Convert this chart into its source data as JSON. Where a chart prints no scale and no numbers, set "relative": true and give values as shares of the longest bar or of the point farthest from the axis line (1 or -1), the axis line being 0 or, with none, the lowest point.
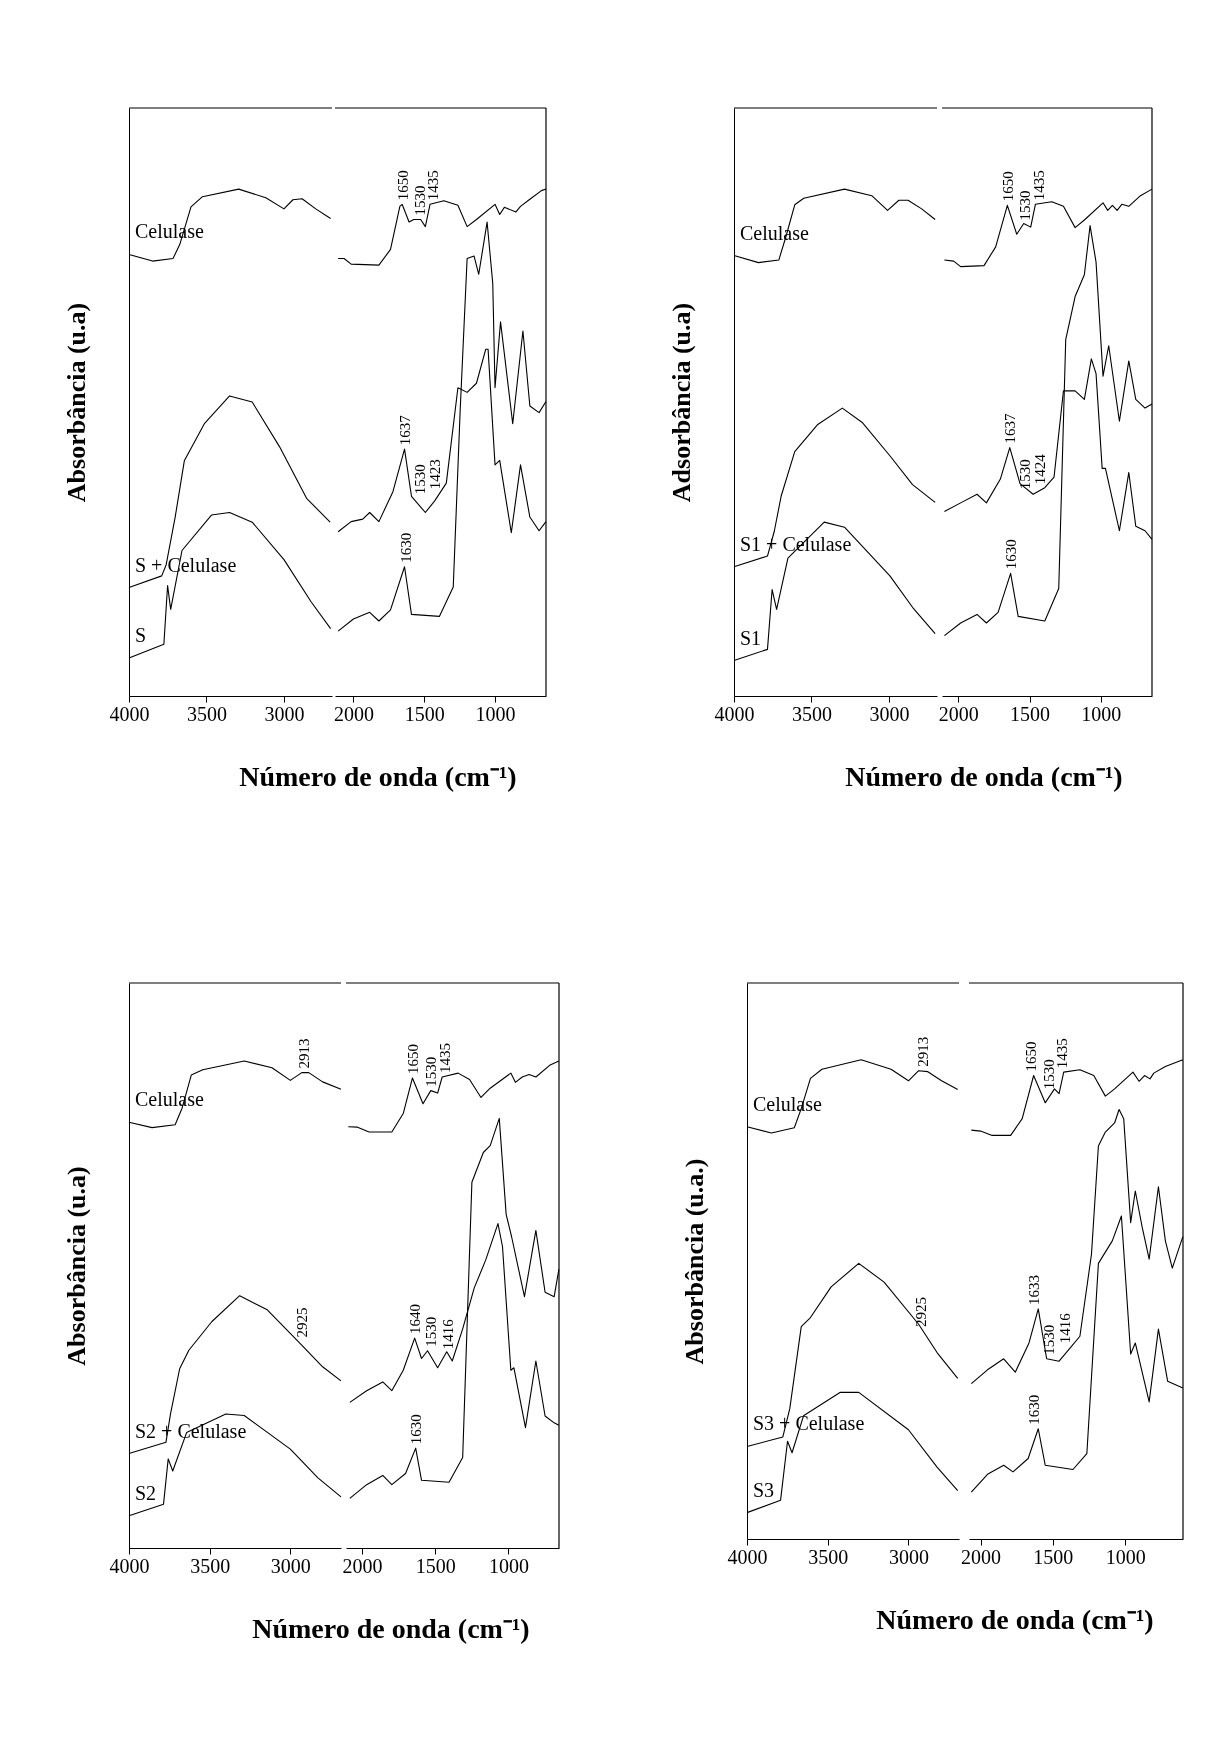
{
  "chart_data": [
    {
      "type": "line",
      "relative": true,
      "tick_labels": "x",
      "ylabel": "Absorbância (u.a)",
      "xlabel": "Número de onda (cm⁻¹)",
      "xlim": [
        4000,
        2690
      ],
      "xticks": [
        4000,
        3500,
        3000
      ],
      "series": [
        {
          "name": "Celulase",
          "color": "#000000",
          "x": [
            4000,
            3848,
            3716,
            3672,
            3600,
            3526,
            3292,
            3117,
            3000,
            2942,
            2883,
            2795,
            2699
          ],
          "values": [
            0.871,
            0.858,
            0.863,
            0.891,
            0.965,
            0.985,
            1.0,
            0.983,
            0.961,
            0.979,
            0.981,
            0.961,
            0.942
          ]
        },
        {
          "name": "S + Celulase",
          "color": "#000000",
          "x": [
            4000,
            3789,
            3760,
            3702,
            3643,
            3512,
            3351,
            3205,
            3029,
            2854,
            2702
          ],
          "values": [
            0.214,
            0.237,
            0.259,
            0.353,
            0.464,
            0.538,
            0.592,
            0.58,
            0.492,
            0.39,
            0.343
          ]
        },
        {
          "name": "S",
          "color": "#000000",
          "x": [
            4000,
            3775,
            3751,
            3731,
            3658,
            3468,
            3351,
            3205,
            3000,
            2825,
            2699
          ],
          "values": [
            0.075,
            0.102,
            0.218,
            0.171,
            0.287,
            0.357,
            0.362,
            0.343,
            0.269,
            0.186,
            0.133
          ]
        }
      ]
    },
    {
      "type": "line",
      "relative": true,
      "tick_labels": "x",
      "xlim": [
        2130,
        640
      ],
      "xticks": [
        2000,
        1500,
        1000
      ],
      "series": [
        {
          "color": "#000000",
          "x": [
            2108,
            2066,
            2016,
            1820,
            1738,
            1672,
            1656,
            1607,
            1574,
            1525,
            1492,
            1459,
            1361,
            1262,
            1197,
            1131,
            1000,
            967,
            934,
            852,
            820,
            754,
            672,
            640
          ],
          "values": [
            0.863,
            0.863,
            0.852,
            0.85,
            0.881,
            0.966,
            0.97,
            0.935,
            0.94,
            0.94,
            0.926,
            0.97,
            0.977,
            0.968,
            0.926,
            0.94,
            0.97,
            0.95,
            0.964,
            0.955,
            0.966,
            0.98,
            0.997,
            1.0
          ]
        },
        {
          "color": "#000000",
          "x": [
            2108,
            2016,
            1934,
            1885,
            1820,
            1721,
            1639,
            1590,
            1492,
            1426,
            1344,
            1262,
            1197,
            1131,
            1066,
            1049,
            1000,
            967,
            885,
            820,
            754,
            689,
            640
          ],
          "values": [
            0.324,
            0.344,
            0.349,
            0.362,
            0.344,
            0.403,
            0.487,
            0.394,
            0.362,
            0.385,
            0.42,
            0.608,
            0.599,
            0.617,
            0.684,
            0.684,
            0.456,
            0.465,
            0.322,
            0.456,
            0.353,
            0.326,
            0.344
          ]
        },
        {
          "color": "#000000",
          "x": [
            2108,
            2000,
            1885,
            1820,
            1738,
            1639,
            1590,
            1393,
            1295,
            1246,
            1197,
            1148,
            1115,
            1056,
            1016,
            1000,
            961,
            875,
            803,
            754,
            689,
            640
          ],
          "values": [
            0.128,
            0.152,
            0.165,
            0.148,
            0.17,
            0.255,
            0.161,
            0.157,
            0.215,
            0.564,
            0.863,
            0.868,
            0.832,
            0.935,
            0.814,
            0.608,
            0.738,
            0.537,
            0.72,
            0.572,
            0.559,
            0.581
          ]
        }
      ],
      "annotations": [
        {
          "text": "1650",
          "x": 1650,
          "y": 0.97
        },
        {
          "text": "1530",
          "x": 1530,
          "y": 0.94
        },
        {
          "text": "1435",
          "x": 1435,
          "y": 0.97
        },
        {
          "text": "1637",
          "x": 1637,
          "y": 0.487
        },
        {
          "text": "1530",
          "x": 1530,
          "y": 0.39
        },
        {
          "text": "1423",
          "x": 1423,
          "y": 0.4
        },
        {
          "text": "1630",
          "x": 1630,
          "y": 0.255
        }
      ]
    },
    {
      "type": "line",
      "relative": true,
      "tick_labels": "x",
      "ylabel": "Adsorbância (u.a)",
      "xlabel": "Número de onda (cm⁻¹)",
      "xlim": [
        4000,
        2690
      ],
      "xticks": [
        4000,
        3500,
        3000
      ],
      "series": [
        {
          "name": "Celulase",
          "color": "#000000",
          "x": [
            4000,
            3842,
            3711,
            3667,
            3608,
            3550,
            3287,
            3111,
            3009,
            2936,
            2877,
            2789,
            2702
          ],
          "values": [
            0.869,
            0.855,
            0.86,
            0.904,
            0.969,
            0.982,
            1.0,
            0.987,
            0.958,
            0.978,
            0.978,
            0.961,
            0.94
          ]
        },
        {
          "name": "S1 + Celulase",
          "color": "#000000",
          "x": [
            4000,
            3784,
            3740,
            3696,
            3608,
            3462,
            3301,
            3170,
            2994,
            2848,
            2702
          ],
          "values": [
            0.255,
            0.276,
            0.325,
            0.394,
            0.482,
            0.535,
            0.568,
            0.539,
            0.474,
            0.417,
            0.382
          ]
        },
        {
          "name": "S1",
          "color": "#000000",
          "x": [
            4000,
            3784,
            3754,
            3725,
            3652,
            3418,
            3287,
            2994,
            2848,
            2702
          ],
          "values": [
            0.07,
            0.092,
            0.21,
            0.171,
            0.272,
            0.343,
            0.333,
            0.237,
            0.175,
            0.123
          ]
        }
      ]
    },
    {
      "type": "line",
      "relative": true,
      "tick_labels": "x",
      "xlim": [
        2115,
        640
      ],
      "xticks": [
        2000,
        1500,
        1000
      ],
      "series": [
        {
          "color": "#000000",
          "x": [
            2098,
            2033,
            1984,
            1820,
            1738,
            1656,
            1590,
            1541,
            1492,
            1459,
            1344,
            1262,
            1180,
            1115,
            984,
            951,
            918,
            885,
            852,
            803,
            721,
            640
          ],
          "values": [
            0.86,
            0.858,
            0.847,
            0.849,
            0.886,
            0.968,
            0.911,
            0.932,
            0.925,
            0.97,
            0.975,
            0.966,
            0.924,
            0.939,
            0.973,
            0.958,
            0.968,
            0.958,
            0.97,
            0.966,
            0.987,
            1.0
          ]
        },
        {
          "color": "#000000",
          "x": [
            2098,
            1984,
            1869,
            1803,
            1705,
            1639,
            1567,
            1475,
            1393,
            1328,
            1262,
            1180,
            1115,
            1066,
            1033,
            990,
            967,
            869,
            803,
            754,
            689,
            640
          ],
          "values": [
            0.364,
            0.381,
            0.398,
            0.381,
            0.428,
            0.49,
            0.419,
            0.398,
            0.411,
            0.432,
            0.602,
            0.602,
            0.585,
            0.665,
            0.636,
            0.449,
            0.449,
            0.326,
            0.441,
            0.335,
            0.326,
            0.309
          ]
        },
        {
          "color": "#000000",
          "x": [
            2098,
            1984,
            1869,
            1803,
            1721,
            1633,
            1580,
            1393,
            1295,
            1246,
            1180,
            1115,
            1075,
            1033,
            984,
            944,
            869,
            803,
            754,
            689,
            640
          ],
          "values": [
            0.119,
            0.144,
            0.161,
            0.144,
            0.165,
            0.242,
            0.157,
            0.148,
            0.212,
            0.703,
            0.788,
            0.831,
            0.928,
            0.856,
            0.631,
            0.691,
            0.542,
            0.661,
            0.585,
            0.568,
            0.576
          ]
        }
      ],
      "annotations": [
        {
          "text": "1650",
          "x": 1650,
          "y": 0.968
        },
        {
          "text": "1530",
          "x": 1530,
          "y": 0.93
        },
        {
          "text": "1435",
          "x": 1435,
          "y": 0.97
        },
        {
          "text": "1637",
          "x": 1637,
          "y": 0.49
        },
        {
          "text": "1530",
          "x": 1530,
          "y": 0.4
        },
        {
          "text": "1424",
          "x": 1424,
          "y": 0.41
        },
        {
          "text": "1630",
          "x": 1630,
          "y": 0.242
        }
      ]
    },
    {
      "type": "line",
      "relative": true,
      "tick_labels": "x",
      "ylabel": "Absorbância (u.a)",
      "xlabel": "Número de onda (cm⁻¹)",
      "xlim": [
        4000,
        2686
      ],
      "xticks": [
        4000,
        3500,
        3000
      ],
      "series": [
        {
          "name": "Celulase",
          "color": "#000000",
          "x": [
            4000,
            3857,
            3714,
            3671,
            3614,
            3543,
            3286,
            3114,
            3000,
            2929,
            2886,
            2800,
            2686
          ],
          "values": [
            0.874,
            0.863,
            0.869,
            0.903,
            0.971,
            0.982,
            1.0,
            0.986,
            0.96,
            0.976,
            0.976,
            0.957,
            0.942
          ]
        },
        {
          "name": "S2 + Celulase",
          "color": "#000000",
          "x": [
            4000,
            3771,
            3743,
            3686,
            3629,
            3486,
            3314,
            3143,
            2943,
            2800,
            2686
          ],
          "values": [
            0.194,
            0.217,
            0.275,
            0.368,
            0.406,
            0.465,
            0.518,
            0.489,
            0.421,
            0.372,
            0.343
          ]
        },
        {
          "name": "S2",
          "color": "#000000",
          "x": [
            4000,
            3786,
            3757,
            3729,
            3643,
            3400,
            3286,
            3000,
            2829,
            2686
          ],
          "values": [
            0.066,
            0.09,
            0.183,
            0.158,
            0.237,
            0.275,
            0.272,
            0.203,
            0.144,
            0.105
          ]
        }
      ],
      "annotations": [
        {
          "text": "2913",
          "x": 2913,
          "y": 0.976
        },
        {
          "text": "2925",
          "x": 2925,
          "y": 0.424
        }
      ]
    },
    {
      "type": "line",
      "relative": true,
      "tick_labels": "x",
      "xlim": [
        2110,
        655
      ],
      "xticks": [
        2000,
        1500,
        1000
      ],
      "series": [
        {
          "color": "#000000",
          "x": [
            2094,
            2031,
            1953,
            1797,
            1719,
            1656,
            1584,
            1531,
            1484,
            1453,
            1344,
            1266,
            1188,
            1125,
            984,
            953,
            906,
            859,
            813,
            719,
            656
          ],
          "values": [
            0.865,
            0.864,
            0.854,
            0.854,
            0.892,
            0.965,
            0.912,
            0.939,
            0.934,
            0.967,
            0.975,
            0.962,
            0.925,
            0.944,
            0.975,
            0.956,
            0.967,
            0.972,
            0.967,
            0.991,
            1.0
          ]
        },
        {
          "color": "#000000",
          "x": [
            2084,
            1969,
            1859,
            1797,
            1719,
            1641,
            1594,
            1553,
            1484,
            1422,
            1384,
            1313,
            1234,
            1156,
            1072,
            1041,
            984,
            963,
            884,
            813,
            750,
            688,
            656
          ],
          "values": [
            0.299,
            0.323,
            0.341,
            0.323,
            0.365,
            0.431,
            0.389,
            0.405,
            0.37,
            0.403,
            0.384,
            0.45,
            0.534,
            0.591,
            0.666,
            0.619,
            0.365,
            0.37,
            0.247,
            0.384,
            0.271,
            0.257,
            0.252
          ]
        },
        {
          "color": "#000000",
          "x": [
            2084,
            1969,
            1859,
            1797,
            1703,
            1634,
            1594,
            1406,
            1313,
            1250,
            1172,
            1125,
            1063,
            1016,
            978,
            891,
            813,
            750,
            688,
            656
          ],
          "values": [
            0.102,
            0.13,
            0.149,
            0.13,
            0.153,
            0.205,
            0.139,
            0.135,
            0.186,
            0.751,
            0.812,
            0.826,
            0.882,
            0.685,
            0.638,
            0.516,
            0.652,
            0.525,
            0.516,
            0.572
          ]
        }
      ],
      "annotations": [
        {
          "text": "1650",
          "x": 1650,
          "y": 0.965
        },
        {
          "text": "1530",
          "x": 1530,
          "y": 0.939
        },
        {
          "text": "1435",
          "x": 1435,
          "y": 0.967
        },
        {
          "text": "1640",
          "x": 1640,
          "y": 0.431
        },
        {
          "text": "1530",
          "x": 1530,
          "y": 0.405
        },
        {
          "text": "1416",
          "x": 1416,
          "y": 0.4
        },
        {
          "text": "1630",
          "x": 1630,
          "y": 0.205
        }
      ]
    },
    {
      "type": "line",
      "relative": true,
      "tick_labels": "x",
      "ylabel": "Absorbância (u.a.)",
      "xlabel": "Número de onda (cm⁻¹)",
      "xlim": [
        4000,
        2687
      ],
      "xticks": [
        4000,
        3500,
        3000
      ],
      "series": [
        {
          "name": "Celulase",
          "color": "#000000",
          "x": [
            4000,
            3849,
            3707,
            3664,
            3607,
            3536,
            3293,
            3108,
            3000,
            2937,
            2880,
            2795,
            2695
          ],
          "values": [
            0.86,
            0.847,
            0.858,
            0.898,
            0.961,
            0.98,
            1.0,
            0.98,
            0.956,
            0.977,
            0.975,
            0.956,
            0.938
          ]
        },
        {
          "name": "S3 + Celulase",
          "color": "#000000",
          "x": [
            4000,
            3778,
            3735,
            3664,
            3607,
            3479,
            3308,
            3151,
            2937,
            2823,
            2695
          ],
          "values": [
            0.193,
            0.213,
            0.272,
            0.443,
            0.462,
            0.526,
            0.575,
            0.536,
            0.448,
            0.389,
            0.335
          ]
        },
        {
          "name": "S3",
          "color": "#000000",
          "x": [
            4000,
            3792,
            3749,
            3721,
            3650,
            3422,
            3308,
            3000,
            2823,
            2695
          ],
          "values": [
            0.055,
            0.081,
            0.204,
            0.18,
            0.257,
            0.306,
            0.306,
            0.228,
            0.15,
            0.101
          ]
        }
      ],
      "annotations": [
        {
          "text": "2913",
          "x": 2913,
          "y": 0.977
        },
        {
          "text": "2925",
          "x": 2925,
          "y": 0.434
        }
      ]
    },
    {
      "type": "line",
      "relative": true,
      "tick_labels": "x",
      "xlim": [
        2080,
        600
      ],
      "xticks": [
        2000,
        1500,
        1000
      ],
      "series": [
        {
          "color": "#000000",
          "x": [
            2064,
            2000,
            1920,
            1792,
            1712,
            1633,
            1553,
            1489,
            1457,
            1425,
            1313,
            1217,
            1137,
            1073,
            946,
            904,
            866,
            828,
            802,
            722,
            601
          ],
          "values": [
            0.853,
            0.851,
            0.842,
            0.842,
            0.877,
            0.967,
            0.91,
            0.939,
            0.929,
            0.974,
            0.979,
            0.967,
            0.924,
            0.939,
            0.974,
            0.955,
            0.967,
            0.96,
            0.972,
            0.986,
            1.0
          ]
        },
        {
          "color": "#000000",
          "x": [
            2064,
            1952,
            1840,
            1760,
            1665,
            1601,
            1543,
            1457,
            1377,
            1313,
            1233,
            1185,
            1137,
            1073,
            1042,
            1010,
            962,
            930,
            882,
            834,
            770,
            722,
            674,
            601
          ],
          "values": [
            0.324,
            0.353,
            0.376,
            0.348,
            0.409,
            0.48,
            0.376,
            0.371,
            0.4,
            0.423,
            0.594,
            0.82,
            0.849,
            0.868,
            0.896,
            0.877,
            0.66,
            0.726,
            0.65,
            0.584,
            0.735,
            0.622,
            0.565,
            0.631
          ]
        },
        {
          "color": "#000000",
          "x": [
            2064,
            1952,
            1840,
            1776,
            1671,
            1601,
            1553,
            1361,
            1265,
            1185,
            1089,
            1026,
            962,
            930,
            834,
            770,
            706,
            601
          ],
          "values": [
            0.098,
            0.135,
            0.154,
            0.14,
            0.168,
            0.23,
            0.154,
            0.145,
            0.178,
            0.575,
            0.622,
            0.674,
            0.386,
            0.409,
            0.286,
            0.438,
            0.329,
            0.315
          ]
        }
      ],
      "annotations": [
        {
          "text": "1650",
          "x": 1650,
          "y": 0.967
        },
        {
          "text": "1530",
          "x": 1530,
          "y": 0.93
        },
        {
          "text": "1435",
          "x": 1435,
          "y": 0.974
        },
        {
          "text": "1633",
          "x": 1633,
          "y": 0.48
        },
        {
          "text": "1530",
          "x": 1530,
          "y": 0.376
        },
        {
          "text": "1416",
          "x": 1416,
          "y": 0.4
        },
        {
          "text": "1630",
          "x": 1630,
          "y": 0.23
        }
      ]
    }
  ]
}
